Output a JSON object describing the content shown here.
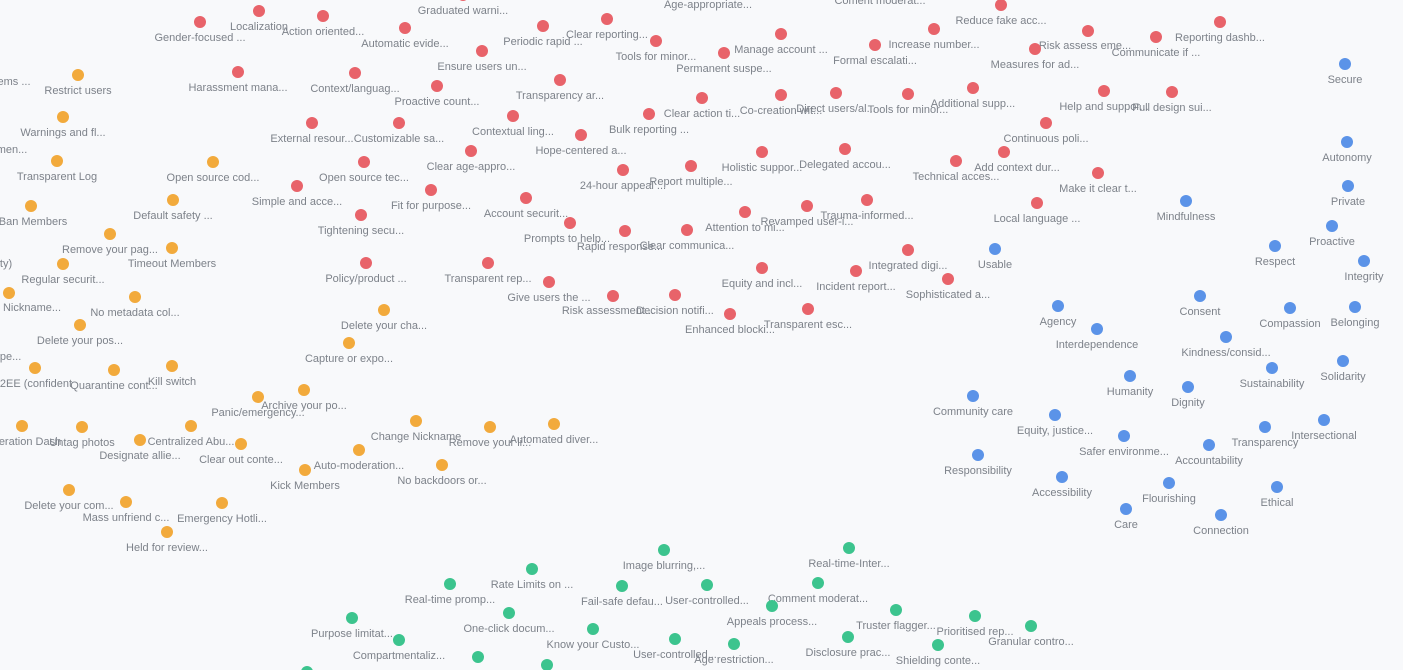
{
  "clusters": [
    {
      "color": "#e8636a",
      "nodes": [
        "Graduated warni...",
        "Age-appropriate...",
        "Coment moderat...",
        "Reduce fake acc...",
        "Localization",
        "Gender-focused ...",
        "Action oriented...",
        "Automatic evide...",
        "Periodic rapid ...",
        "Clear reporting...",
        "Tools for minor...",
        "Manage account ...",
        "Increase number...",
        "Formal escalati...",
        "Risk assess eme...",
        "Measures for ad...",
        "Communicate if ...",
        "Reporting dashb...",
        "Ensure users un...",
        "Permanent suspe...",
        "Harassment mana...",
        "Context/languag...",
        "Proactive count...",
        "Transparency ar...",
        "Clear action ti...",
        "Co-creation wit...",
        "Direct users/al...",
        "Tools for minor...",
        "Additional supp...",
        "Help and suppor...",
        "Full design sui...",
        "External resour...",
        "Customizable sa...",
        "Contextual ling...",
        "Bulk reporting ...",
        "Hope-centered a...",
        "Continuous poli...",
        "Clear age-appro...",
        "Holistic suppor...",
        "Delegated accou...",
        "Technical acces...",
        "Add context dur...",
        "Open source tec...",
        "24-hour appeal ...",
        "Report multiple...",
        "Make it clear t...",
        "Simple and acce...",
        "Fit for purpose...",
        "Account securit...",
        "Local language ...",
        "Tightening secu...",
        "Attention to mi...",
        "Revamped user-i...",
        "Trauma-informed...",
        "Prompts to help...",
        "Rapid response...",
        "Clear communica...",
        "Integrated digi...",
        "Policy/product ...",
        "Transparent rep...",
        "Equity and incl...",
        "Incident report...",
        "Sophisticated a...",
        "Give users the ...",
        "Risk assessment...",
        "Decision notifi...",
        "Enhanced blocki...",
        "Transparent esc..."
      ]
    },
    {
      "color": "#f2aa3c",
      "nodes": [
        "Restrict users",
        "ems ...",
        "Warnings and fl...",
        "men...",
        "Transparent Log",
        "Open source cod...",
        "Default safety ...",
        "Ban Members",
        "Remove your pag...",
        "Timeout Members",
        "ty)",
        "Regular securit...",
        "Nickname...",
        "No metadata col...",
        "Delete your cha...",
        "Delete your pos...",
        "Capture or expo...",
        "d pe...",
        "2EE (confident",
        "Quarantine cont...",
        "Kill switch",
        "Archive your po...",
        "Panic/emergency...",
        "Change Nickname",
        "Remove your li...",
        "Automated diver...",
        "eration Dash",
        "Untag photos",
        "Centralized Abu...",
        "Designate allie...",
        "Clear out conte...",
        "Auto-moderation...",
        "Kick Members",
        "No backdoors or...",
        "Delete your com...",
        "Mass unfriend c...",
        "Emergency Hotli...",
        "Held for review..."
      ]
    },
    {
      "color": "#5b93e8",
      "nodes": [
        "Secure",
        "Autonomy",
        "Private",
        "Mindfulness",
        "Proactive",
        "Usable",
        "Respect",
        "Integrity",
        "Agency",
        "Consent",
        "Compassion",
        "Belonging",
        "Interdependence",
        "Kindness/consid...",
        "Sustainability",
        "Solidarity",
        "Humanity",
        "Dignity",
        "Community care",
        "Equity, justice...",
        "Safer environme...",
        "Transparency",
        "Intersectional",
        "Accountability",
        "Responsibility",
        "Accessibility",
        "Flourishing",
        "Ethical",
        "Care",
        "Connection"
      ]
    },
    {
      "color": "#3cc48e",
      "nodes": [
        "Image blurring,...",
        "Real-time-Inter...",
        "Rate Limits on ...",
        "Real-time promp...",
        "Fail-safe defau...",
        "User-controlled...",
        "Comment moderat...",
        "Appeals process...",
        "Truster flagger...",
        "Prioritised rep...",
        "Granular contro...",
        "Purpose limitat...",
        "One-click docum...",
        "Know your Custo...",
        "Compartmentaliz...",
        "User-controlled...",
        "Age restriction...",
        "Disclosure prac...",
        "Shielding conte..."
      ]
    }
  ]
}
